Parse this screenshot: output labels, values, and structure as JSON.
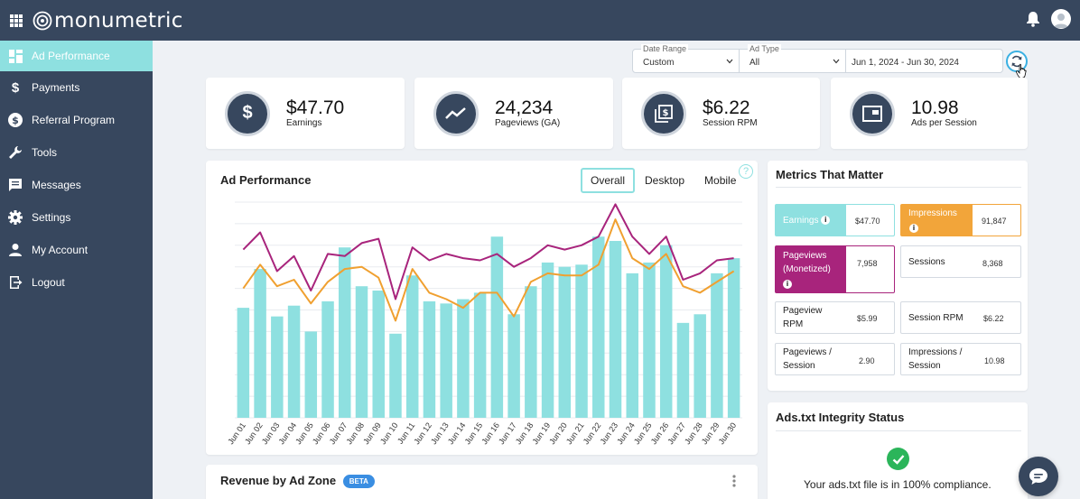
{
  "app": {
    "brand": "monumetric"
  },
  "sidebar": {
    "items": [
      {
        "label": "Ad Performance",
        "icon": "dashboard-icon",
        "active": true
      },
      {
        "label": "Payments",
        "icon": "dollar-icon"
      },
      {
        "label": "Referral Program",
        "icon": "money-circle-icon"
      },
      {
        "label": "Tools",
        "icon": "wrench-icon"
      },
      {
        "label": "Messages",
        "icon": "message-icon"
      },
      {
        "label": "Settings",
        "icon": "gear-icon"
      },
      {
        "label": "My Account",
        "icon": "person-icon"
      },
      {
        "label": "Logout",
        "icon": "logout-icon"
      }
    ]
  },
  "filters": {
    "date_range": {
      "label": "Date Range",
      "value": "Custom"
    },
    "ad_type": {
      "label": "Ad Type",
      "value": "All"
    },
    "dates": "Jun 1, 2024 - Jun 30, 2024"
  },
  "kpis": [
    {
      "value": "$47.70",
      "label": "Earnings",
      "icon": "dollar-icon"
    },
    {
      "value": "24,234",
      "label": "Pageviews (GA)",
      "icon": "trend-icon"
    },
    {
      "value": "$6.22",
      "label": "Session RPM",
      "icon": "money-stack-icon"
    },
    {
      "value": "10.98",
      "label": "Ads per Session",
      "icon": "ad-screen-icon"
    }
  ],
  "ad_performance": {
    "title": "Ad Performance",
    "tabs": [
      "Overall",
      "Desktop",
      "Mobile"
    ],
    "selected_tab": "Overall",
    "help": "?"
  },
  "chart_data": {
    "type": "bar",
    "categories": [
      "Jun 01",
      "Jun 02",
      "Jun 03",
      "Jun 04",
      "Jun 05",
      "Jun 06",
      "Jun 07",
      "Jun 08",
      "Jun 09",
      "Jun 10",
      "Jun 11",
      "Jun 12",
      "Jun 13",
      "Jun 14",
      "Jun 15",
      "Jun 16",
      "Jun 17",
      "Jun 18",
      "Jun 19",
      "Jun 20",
      "Jun 21",
      "Jun 22",
      "Jun 23",
      "Jun 24",
      "Jun 25",
      "Jun 26",
      "Jun 27",
      "Jun 28",
      "Jun 29",
      "Jun 30"
    ],
    "ylim": [
      0,
      100
    ],
    "grid": true,
    "series": [
      {
        "type": "bar",
        "color": "#8ee0e0",
        "values": [
          51,
          69,
          47,
          52,
          40,
          54,
          79,
          61,
          59,
          39,
          66,
          54,
          53,
          55,
          58,
          84,
          48,
          61,
          72,
          70,
          71,
          84,
          82,
          67,
          72,
          80,
          44,
          48,
          67,
          74
        ]
      },
      {
        "type": "line",
        "color": "#a8247c",
        "values": [
          78,
          86,
          68,
          75,
          59,
          76,
          75,
          81,
          83,
          55,
          79,
          73,
          76,
          74,
          73,
          76,
          70,
          74,
          80,
          78,
          80,
          84,
          99,
          84,
          76,
          84,
          64,
          67,
          73,
          74
        ]
      },
      {
        "type": "line",
        "color": "#f0a030",
        "values": [
          60,
          71,
          61,
          64,
          53,
          63,
          69,
          70,
          65,
          45,
          69,
          58,
          55,
          51,
          58,
          58,
          47,
          63,
          67,
          66,
          66,
          71,
          92,
          74,
          69,
          76,
          61,
          58,
          63,
          68
        ]
      }
    ]
  },
  "metrics": {
    "title": "Metrics That Matter",
    "items": [
      {
        "label": "Earnings",
        "value": "$47.70",
        "info": "i"
      },
      {
        "label": "Impressions",
        "value": "91,847",
        "info": "i"
      },
      {
        "label": "Pageviews (Monetized)",
        "value": "7,958",
        "info": "i"
      },
      {
        "label": "Sessions",
        "value": "8,368"
      },
      {
        "label": "Pageview RPM",
        "value": "$5.99"
      },
      {
        "label": "Session RPM",
        "value": "$6.22"
      },
      {
        "label": "Pageviews / Session",
        "value": "2.90"
      },
      {
        "label": "Impressions / Session",
        "value": "10.98"
      }
    ],
    "colors": {
      "earnings": "#8ee0e0",
      "impressions": "#f2a53a",
      "pageviews": "#a8247c"
    }
  },
  "revenue": {
    "title": "Revenue by Ad Zone",
    "badge": "BETA"
  },
  "adstxt": {
    "title": "Ads.txt Integrity Status",
    "message": "Your ads.txt file is in 100% compliance."
  }
}
